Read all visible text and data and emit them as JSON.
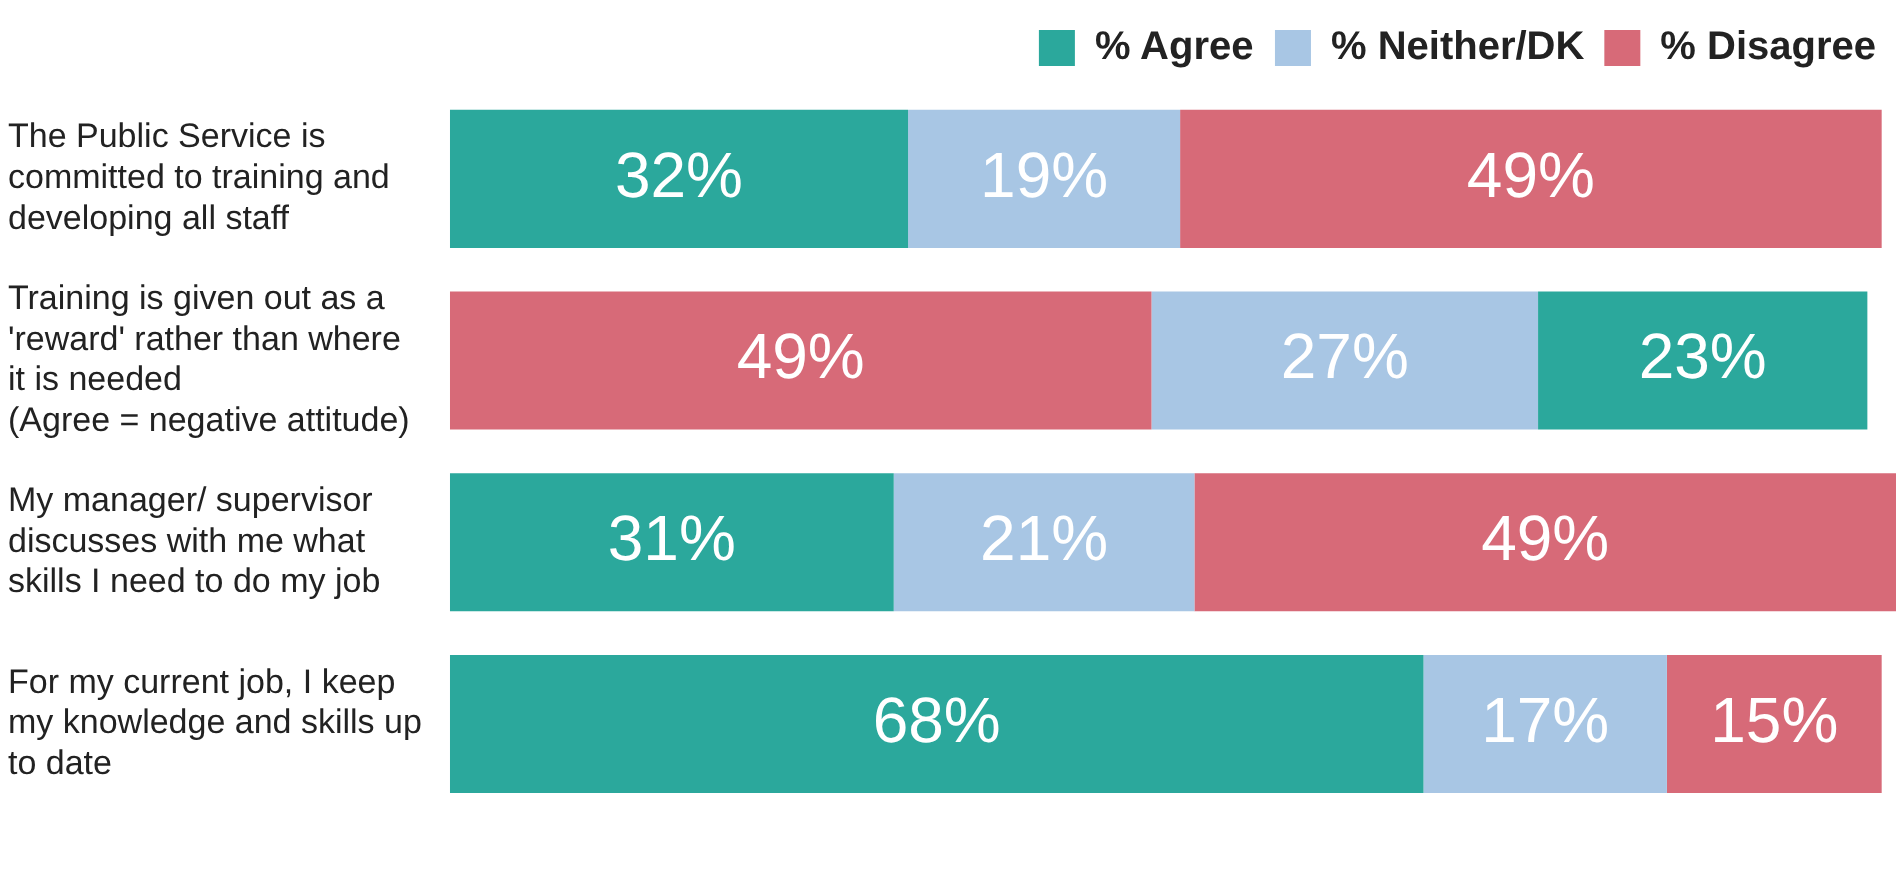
{
  "chart_data": {
    "type": "bar",
    "orientation": "horizontal",
    "stacked": true,
    "categories": [
      "The Public Service is committed to training and developing all staff",
      "Training is given out as a 'reward' rather than where it is needed (Agree = negative attitude)",
      "My manager/ supervisor discusses with me what skills I need to do my job",
      "For my current job, I keep my knowledge and skills up to date"
    ],
    "series": [
      {
        "color": "#d76a78",
        "values": [
          null,
          49,
          null,
          null
        ],
        "value_labels": [
          null,
          "49%",
          null,
          null
        ]
      },
      {
        "color": "#a8c6e4",
        "values": [
          null,
          27,
          null,
          null
        ],
        "value_labels": [
          null,
          "27%",
          null,
          null
        ]
      },
      {
        "name": "% Agree",
        "color": "#2ba89c",
        "values": [
          32,
          23,
          31,
          68
        ],
        "value_labels": [
          "32%",
          "23%",
          "31%",
          "68%"
        ]
      },
      {
        "name": "% Neither/DK",
        "color": "#a8c6e4",
        "values": [
          19,
          null,
          21,
          17
        ],
        "value_labels": [
          "19%",
          null,
          "21%",
          "17%"
        ]
      },
      {
        "name": "% Disagree",
        "color": "#d76a78",
        "values": [
          49,
          null,
          49,
          15
        ],
        "value_labels": [
          "49%",
          null,
          "49%",
          "15%"
        ]
      }
    ],
    "tick_labels": "y",
    "legend": "top"
  }
}
